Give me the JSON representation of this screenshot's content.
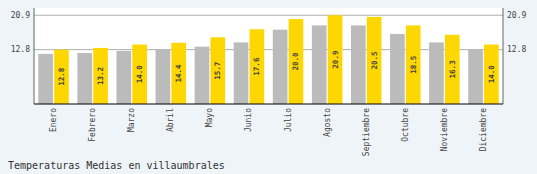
{
  "chart_data": {
    "type": "bar",
    "title": "Temperaturas Medias en villaumbrales",
    "categories": [
      "Enero",
      "Febrero",
      "Marzo",
      "Abril",
      "Mayo",
      "Junio",
      "Julio",
      "Agosto",
      "Septiembre",
      "Octubre",
      "Noviembre",
      "Diciembre"
    ],
    "series": [
      {
        "color": "#BBBBBB",
        "values": [
          11.8,
          12.0,
          12.5,
          12.8,
          13.5,
          14.5,
          17.5,
          18.5,
          18.5,
          16.5,
          14.5,
          12.8
        ]
      },
      {
        "color": "#FFD700",
        "values": [
          12.8,
          13.2,
          14.0,
          14.4,
          15.7,
          17.6,
          20.0,
          20.9,
          20.5,
          18.5,
          16.3,
          14.0
        ],
        "value_labels": [
          "12.8",
          "13.2",
          "14.0",
          "14.4",
          "15.7",
          "17.6",
          "20.0",
          "20.9",
          "20.5",
          "18.5",
          "16.3",
          "14.0"
        ],
        "data_labels": true
      }
    ],
    "ylim": [
      0,
      22.6
    ],
    "yticks": [
      12.8,
      20.9
    ],
    "y2lim": [
      0,
      22.6
    ],
    "y2ticks": [
      12.8,
      20.9
    ],
    "grid": true
  }
}
